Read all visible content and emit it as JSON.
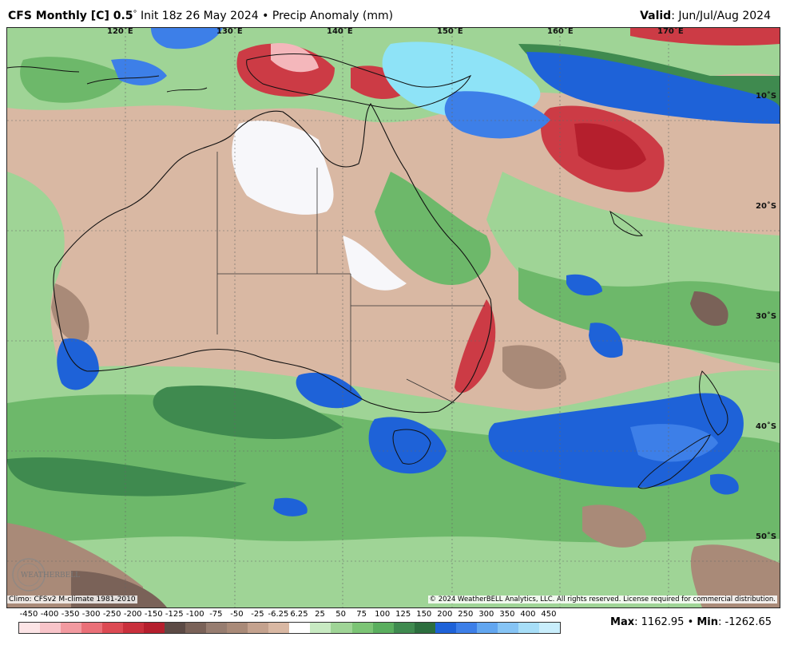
{
  "header": {
    "model": "CFS Monthly [C] 0.5",
    "degree_sign": "°",
    "init": "Init 18z 26 May 2024",
    "bullet": "•",
    "field": "Precip Anomaly (mm)",
    "valid_label": "Valid",
    "valid_value": ": Jun/Jul/Aug 2024"
  },
  "map": {
    "longitude_labels": [
      "120˚E",
      "130˚E",
      "140˚E",
      "150˚E",
      "160˚E",
      "170˚E"
    ],
    "latitude_labels": [
      "10˚S",
      "20˚S",
      "30˚S",
      "40˚S",
      "50˚S"
    ],
    "colors": {
      "dry_base": "#d9b8a3",
      "dry_mid": "#a98a78",
      "dry_dark": "#7a6258",
      "red_light": "#e8747a",
      "red": "#cc3b45",
      "red_dark": "#b51f2d",
      "white": "#f7f7fa",
      "green_light": "#9fd496",
      "green": "#6db86a",
      "green_dark": "#3f8a4f",
      "blue": "#1e62d8",
      "blue_mid": "#3d7fe8",
      "cyan": "#8ee3f7",
      "coast": "#111111"
    }
  },
  "footer": {
    "climo": "Climo: CFSv2 M-climate 1981-2010",
    "copyright": "© 2024 WeatherBELL Analytics, LLC. All rights reserved. License required for commercial distribution.",
    "logo_text": "WEATHERBELL",
    "max_label": "Max",
    "max_value": ": 1162.95",
    "min_label": "Min",
    "min_value": ": -1262.65",
    "bullet": "•"
  },
  "colorbar": {
    "tick_labels": [
      "-450",
      "-400",
      "-350",
      "-300",
      "-250",
      "-200",
      "-150",
      "-125",
      "-100",
      "-75",
      "-50",
      "-25",
      "-6.25",
      "6.25",
      "25",
      "50",
      "75",
      "100",
      "125",
      "150",
      "200",
      "250",
      "300",
      "350",
      "400",
      "450"
    ],
    "swatch_colors": [
      "#fce4e6",
      "#f8c4c9",
      "#f29aa0",
      "#ea7078",
      "#dc4a53",
      "#c9303c",
      "#b51f2d",
      "#5c4a45",
      "#7a6258",
      "#977d70",
      "#a98a78",
      "#c4a28e",
      "#d9b8a3",
      "#ffffff",
      "#c8eac2",
      "#9fd496",
      "#7cc475",
      "#5aae5e",
      "#3f8a4f",
      "#2c6e3e",
      "#1e62d8",
      "#3d7fe8",
      "#62a6f0",
      "#86c4f5",
      "#a7def8",
      "#c9eefc"
    ]
  }
}
